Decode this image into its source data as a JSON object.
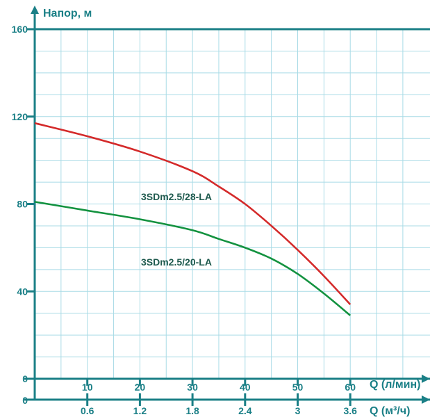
{
  "chart_data": {
    "type": "line",
    "title": "",
    "ylabel": "Напор, м",
    "xlabel": "Q (л/мин)",
    "x2label": "Q (м³/ч)",
    "ylim": [
      0,
      160
    ],
    "xlim": [
      0,
      70
    ],
    "y_ticks": [
      "0",
      "40",
      "80",
      "120",
      "160"
    ],
    "x_ticks": [
      {
        "value": 10,
        "label": "10"
      },
      {
        "value": 20,
        "label": "20"
      },
      {
        "value": 30,
        "label": "30"
      },
      {
        "value": 40,
        "label": "40"
      },
      {
        "value": 50,
        "label": "50"
      },
      {
        "value": 60,
        "label": "60"
      }
    ],
    "x2_ticks": [
      {
        "value": 0.6,
        "label": "0.6"
      },
      {
        "value": 1.2,
        "label": "1.2"
      },
      {
        "value": 1.8,
        "label": "1.8"
      },
      {
        "value": 2.4,
        "label": "2.4"
      },
      {
        "value": 3.0,
        "label": "3"
      },
      {
        "value": 3.6,
        "label": "3.6"
      }
    ],
    "x2_zero_label": "0",
    "grid": true,
    "series": [
      {
        "name": "3SDm2.5/28-LA",
        "color": "#d42a2a",
        "x": [
          0,
          10,
          20,
          30,
          35,
          40,
          45,
          50,
          55,
          60
        ],
        "y": [
          117,
          111,
          104,
          95,
          88,
          80,
          70,
          59,
          47,
          34
        ]
      },
      {
        "name": "3SDm2.5/20-LA",
        "color": "#13923f",
        "x": [
          0,
          10,
          20,
          30,
          35,
          40,
          45,
          50,
          55,
          60
        ],
        "y": [
          81,
          77,
          73,
          68,
          64,
          60,
          55,
          48,
          39,
          29
        ]
      }
    ]
  }
}
